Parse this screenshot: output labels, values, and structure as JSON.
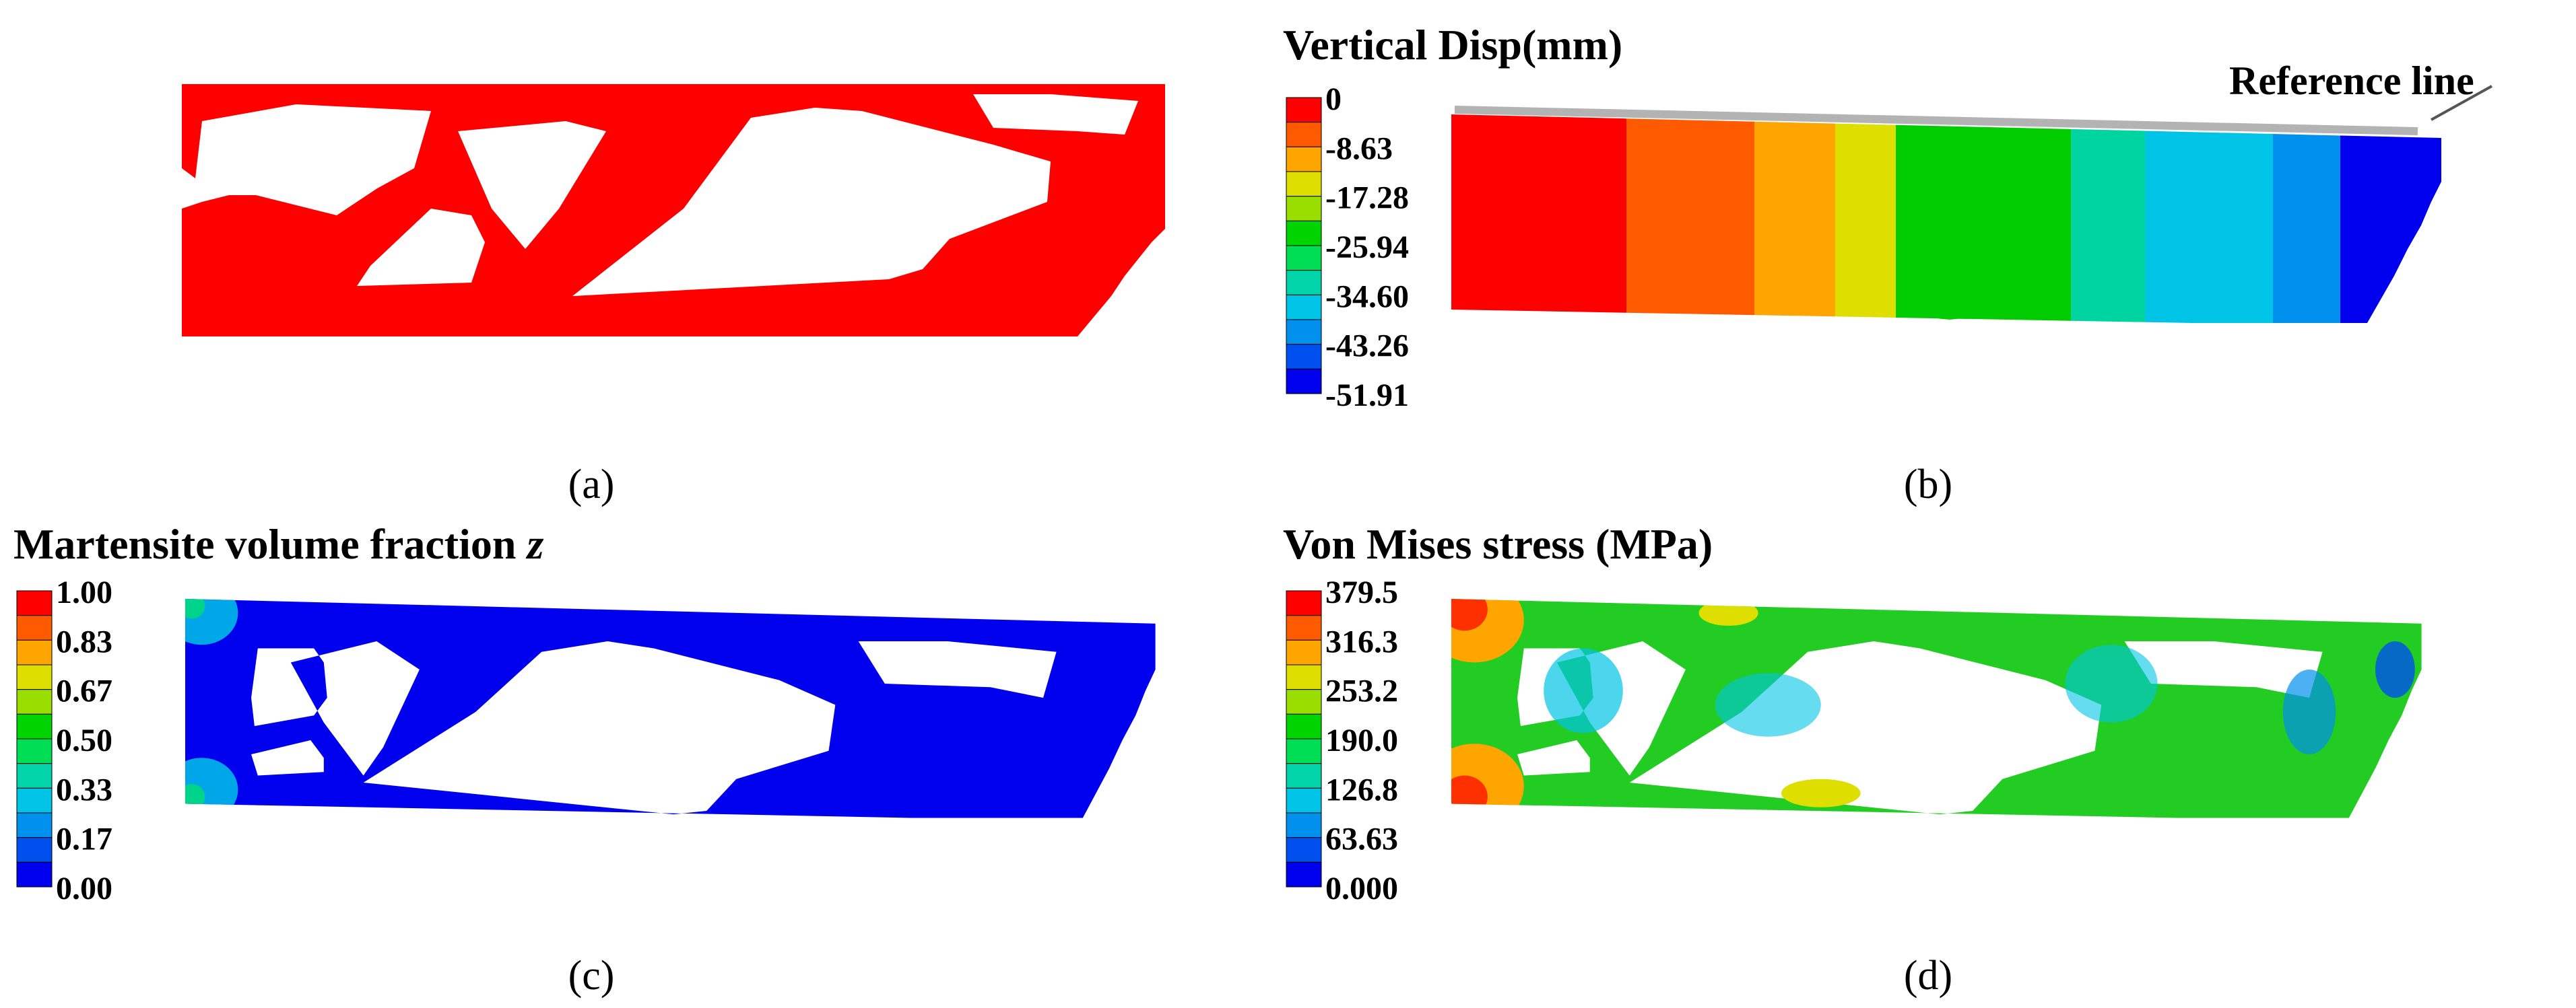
{
  "colors": {
    "red": "#ff0000",
    "blue": "#0000ee",
    "green": "#22cc22",
    "gray": "#b3b3b3"
  },
  "legend_colors": [
    "#ff0000",
    "#ff5a00",
    "#ffa500",
    "#dede00",
    "#9ade00",
    "#00d400",
    "#00de56",
    "#00d4a8",
    "#00c4e6",
    "#0090ee",
    "#0050f0",
    "#0000ee"
  ],
  "panels": {
    "a": {
      "caption": "(a)"
    },
    "b": {
      "caption": "(b)",
      "title": "Vertical Disp(mm)",
      "legend_labels": [
        "0",
        "-8.63",
        "-17.28",
        "-25.94",
        "-34.60",
        "-43.26",
        "-51.91"
      ],
      "annotation": "Reference line"
    },
    "c": {
      "caption": "(c)",
      "title": "Martensite volume fraction ",
      "title_italic": "z",
      "legend_labels": [
        "1.00",
        "0.83",
        "0.67",
        "0.50",
        "0.33",
        "0.17",
        "0.00"
      ]
    },
    "d": {
      "caption": "(d)",
      "title": "Von Mises stress (MPa)",
      "legend_labels": [
        "379.5",
        "316.3",
        "253.2",
        "190.0",
        "126.8",
        "63.63",
        "0.000"
      ]
    }
  }
}
